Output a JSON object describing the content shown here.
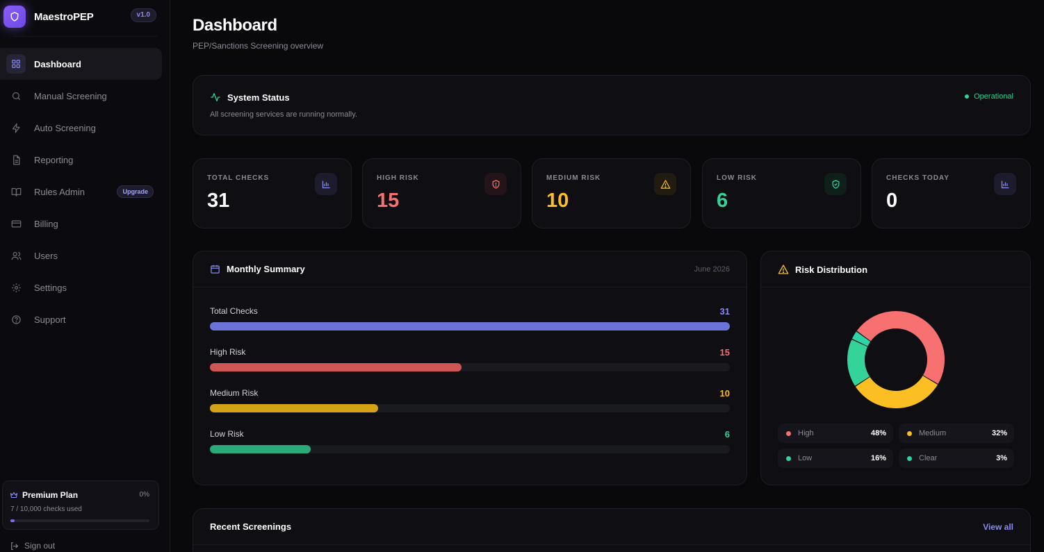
{
  "app": {
    "name": "MaestroPEP",
    "version": "v1.0"
  },
  "sidebar": {
    "items": [
      {
        "label": "Dashboard",
        "icon": "dashboard-grid-icon",
        "active": true
      },
      {
        "label": "Manual Screening",
        "icon": "search-icon"
      },
      {
        "label": "Auto Screening",
        "icon": "lightning-icon"
      },
      {
        "label": "Reporting",
        "icon": "document-icon"
      },
      {
        "label": "Rules Admin",
        "icon": "book-icon",
        "badge": "Upgrade"
      },
      {
        "label": "Billing",
        "icon": "credit-card-icon"
      },
      {
        "label": "Users",
        "icon": "users-icon"
      },
      {
        "label": "Settings",
        "icon": "gear-icon"
      },
      {
        "label": "Support",
        "icon": "help-circle-icon"
      }
    ],
    "plan": {
      "title": "Premium Plan",
      "percent": "0%",
      "usage": "7 / 10,000 checks used",
      "fill_fraction": 0.0007
    },
    "signout": "Sign out"
  },
  "header": {
    "title": "Dashboard",
    "subtitle": "PEP/Sanctions Screening overview"
  },
  "system_status": {
    "title": "System Status",
    "description": "All screening services are running normally.",
    "state": "Operational"
  },
  "stats": [
    {
      "label": "TOTAL CHECKS",
      "value": "31",
      "color": "#ffffff",
      "icon": "bar-chart-icon"
    },
    {
      "label": "HIGH RISK",
      "value": "15",
      "color": "#f87171",
      "icon": "shield-alert-icon"
    },
    {
      "label": "MEDIUM RISK",
      "value": "10",
      "color": "#fbbf24",
      "icon": "warning-triangle-icon"
    },
    {
      "label": "LOW RISK",
      "value": "6",
      "color": "#34d399",
      "icon": "shield-check-icon"
    },
    {
      "label": "CHECKS TODAY",
      "value": "0",
      "color": "#ffffff",
      "icon": "bar-chart-icon"
    }
  ],
  "monthly_summary": {
    "title": "Monthly Summary",
    "period": "June 2026",
    "rows": [
      {
        "label": "Total Checks",
        "value": "31",
        "fraction": 1.0,
        "color": "#6b72d8"
      },
      {
        "label": "High Risk",
        "value": "15",
        "fraction": 0.484,
        "color": "#d05656"
      },
      {
        "label": "Medium Risk",
        "value": "10",
        "fraction": 0.323,
        "color": "#d4a216"
      },
      {
        "label": "Low Risk",
        "value": "6",
        "fraction": 0.194,
        "color": "#2aa97a"
      }
    ]
  },
  "chart_data": {
    "type": "pie",
    "title": "Risk Distribution",
    "categories": [
      "High",
      "Medium",
      "Low",
      "Clear"
    ],
    "values": [
      48,
      32,
      16,
      3
    ],
    "colors": [
      "#f87171",
      "#fbbf24",
      "#34d399",
      "#2dd4a8"
    ],
    "labels": [
      "48%",
      "32%",
      "16%",
      "3%"
    ]
  },
  "recent": {
    "title": "Recent Screenings",
    "link": "View all"
  },
  "colors": {
    "accent": "#8b5cf6",
    "link": "#8b8bf5",
    "operational": "#2fd393"
  }
}
